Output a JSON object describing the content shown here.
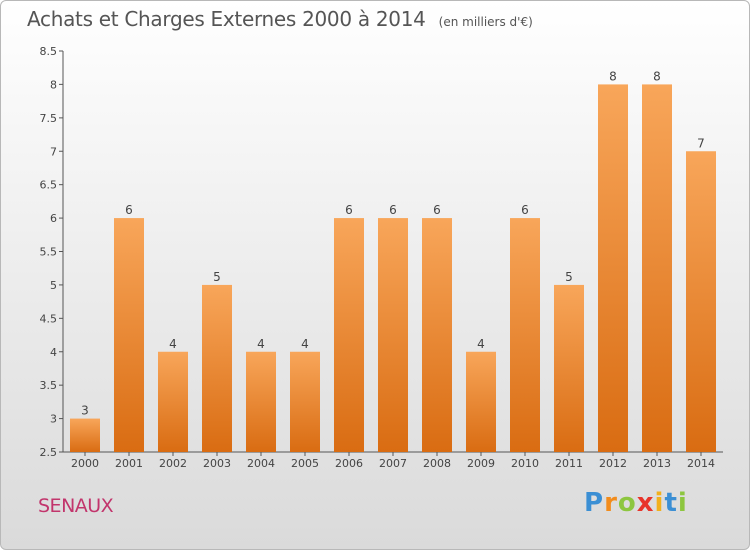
{
  "title": "Achats et Charges Externes 2000 à 2014",
  "unit": "(en milliers d'€)",
  "commune": "SENAUX",
  "brand": {
    "letters": [
      "P",
      "r",
      "o",
      "x",
      "i",
      "t",
      "i"
    ],
    "colors": [
      "#3b8fd4",
      "#f28c1c",
      "#8dc63f",
      "#e8342a",
      "#f2b01c",
      "#3b8fd4",
      "#8dc63f"
    ]
  },
  "colors": {
    "bar_light": "#f8a65a",
    "bar_dark": "#d96c12",
    "commune": "#c2356c"
  },
  "chart_data": {
    "type": "bar",
    "categories": [
      "2000",
      "2001",
      "2002",
      "2003",
      "2004",
      "2005",
      "2006",
      "2007",
      "2008",
      "2009",
      "2010",
      "2011",
      "2012",
      "2013",
      "2014"
    ],
    "values": [
      3,
      6,
      4,
      5,
      4,
      4,
      6,
      6,
      6,
      4,
      6,
      5,
      8,
      8,
      7
    ],
    "data_labels": [
      "3",
      "6",
      "4",
      "5",
      "4",
      "4",
      "6",
      "6",
      "6",
      "4",
      "6",
      "5",
      "8",
      "8",
      "7"
    ],
    "ylim": [
      2.5,
      8.5
    ],
    "yticks": [
      2.5,
      3,
      3.5,
      4,
      4.5,
      5,
      5.5,
      6,
      6.5,
      7,
      7.5,
      8,
      8.5
    ],
    "ytick_labels": [
      "2.5",
      "3",
      "3.5",
      "4",
      "4.5",
      "5",
      "5.5",
      "6",
      "6.5",
      "7",
      "7.5",
      "8",
      "8.5"
    ],
    "grid": false,
    "xlabel": "",
    "ylabel": ""
  }
}
